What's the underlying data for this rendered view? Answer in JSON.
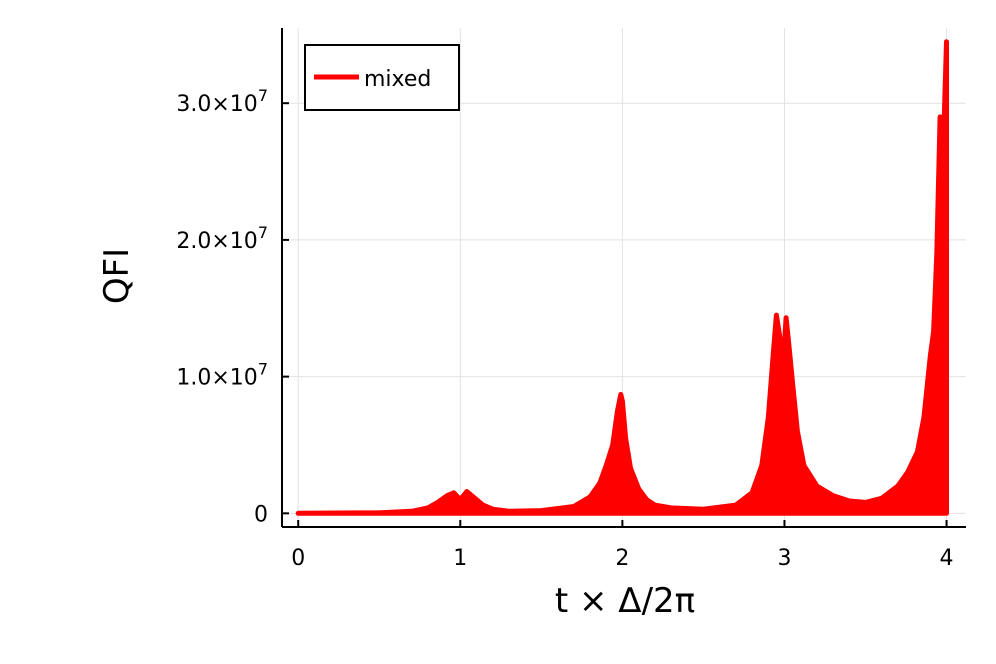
{
  "chart_data": {
    "type": "line",
    "xlabel": "t × Δ/2π",
    "ylabel": "QFI",
    "xlim": [
      -0.1,
      4.12
    ],
    "ylim": [
      -1000000,
      35500000
    ],
    "grid": true,
    "legend_position": "top-left",
    "x_ticks": [
      0,
      1,
      2,
      3,
      4
    ],
    "x_tick_labels": [
      "0",
      "1",
      "2",
      "3",
      "4"
    ],
    "y_ticks": [
      0,
      10000000,
      20000000,
      30000000
    ],
    "y_tick_labels": [
      {
        "mantissa": "0",
        "exponent": ""
      },
      {
        "mantissa": "1.0×10",
        "exponent": "7"
      },
      {
        "mantissa": "2.0×10",
        "exponent": "7"
      },
      {
        "mantissa": "3.0×10",
        "exponent": "7"
      }
    ],
    "series": [
      {
        "name": "mixed",
        "color": "#ff0000",
        "upper_envelope": {
          "x": [
            0,
            0.5,
            0.7,
            0.8,
            0.86,
            0.92,
            0.96,
            1.0,
            1.04,
            1.08,
            1.14,
            1.2,
            1.3,
            1.5,
            1.7,
            1.8,
            1.86,
            1.9,
            1.94,
            1.97,
            1.99,
            2.0,
            2.02,
            2.05,
            2.1,
            2.15,
            2.2,
            2.3,
            2.5,
            2.7,
            2.8,
            2.86,
            2.9,
            2.93,
            2.95,
            2.97,
            2.99,
            3.01,
            3.03,
            3.05,
            3.08,
            3.12,
            3.2,
            3.3,
            3.4,
            3.5,
            3.6,
            3.7,
            3.76,
            3.82,
            3.86,
            3.9,
            3.92,
            3.94,
            3.96,
            3.98,
            4.0
          ],
          "y": [
            0,
            40000,
            150000,
            400000,
            800000,
            1300000,
            1500000,
            1000000,
            1600000,
            1200000,
            600000,
            300000,
            150000,
            200000,
            500000,
            1200000,
            2200000,
            3500000,
            5000000,
            7500000,
            8700000,
            8200000,
            5500000,
            3300000,
            1800000,
            1000000,
            600000,
            400000,
            300000,
            600000,
            1500000,
            3500000,
            7000000,
            11500000,
            14500000,
            13000000,
            10500000,
            14300000,
            12000000,
            9500000,
            6000000,
            3500000,
            2000000,
            1300000,
            900000,
            800000,
            1100000,
            2000000,
            3000000,
            4500000,
            7000000,
            11500000,
            13300000,
            19000000,
            29000000,
            26500000,
            34500000
          ]
        },
        "lower_envelope": {
          "x": [
            0,
            1.5,
            2.0,
            2.5,
            3.0,
            3.5,
            4.0
          ],
          "y": [
            0,
            0,
            0,
            0,
            0,
            0,
            0
          ]
        }
      }
    ]
  }
}
